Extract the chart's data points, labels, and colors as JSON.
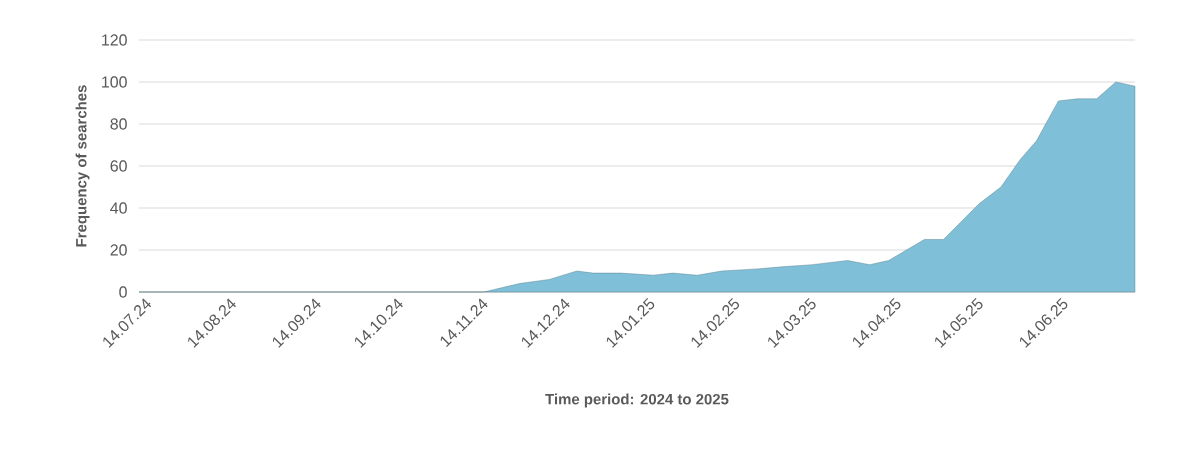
{
  "chart_data": {
    "type": "area",
    "xlabel": "Time period: 2024 to 2025",
    "ylabel": "Frequency of searches",
    "color": "#7fbfd8",
    "x": [
      "2024-07-14",
      "2024-11-17",
      "2024-11-30",
      "2024-12-11",
      "2024-12-21",
      "2024-12-27",
      "2025-01-06",
      "2025-01-18",
      "2025-01-25",
      "2025-02-03",
      "2025-02-12",
      "2025-02-25",
      "2025-03-06",
      "2025-03-17",
      "2025-03-30",
      "2025-04-07",
      "2025-04-14",
      "2025-04-27",
      "2025-05-04",
      "2025-05-17",
      "2025-05-25",
      "2025-06-01",
      "2025-06-07",
      "2025-06-15",
      "2025-06-22",
      "2025-06-29",
      "2025-07-06",
      "2025-07-13"
    ],
    "values": [
      0,
      0,
      4,
      6,
      10,
      9,
      9,
      8,
      9,
      8,
      10,
      11,
      12,
      13,
      15,
      13,
      15,
      25,
      25,
      42,
      50,
      63,
      72,
      91,
      92,
      92,
      100,
      98
    ],
    "xlim": [
      "2024-07-14",
      "2025-07-13"
    ],
    "xticks": [
      {
        "value": "2024-07-14",
        "label": "14.07.24"
      },
      {
        "value": "2024-08-14",
        "label": "14.08.24"
      },
      {
        "value": "2024-09-14",
        "label": "14.09.24"
      },
      {
        "value": "2024-10-14",
        "label": "14.10.24"
      },
      {
        "value": "2024-11-14",
        "label": "14.11.24"
      },
      {
        "value": "2024-12-14",
        "label": "14.12.24"
      },
      {
        "value": "2025-01-14",
        "label": "14.01.25"
      },
      {
        "value": "2025-02-14",
        "label": "14.02.25"
      },
      {
        "value": "2025-03-14",
        "label": "14.03.25"
      },
      {
        "value": "2025-04-14",
        "label": "14.04.25"
      },
      {
        "value": "2025-05-14",
        "label": "14.05.25"
      },
      {
        "value": "2025-06-14",
        "label": "14.06.25"
      }
    ],
    "ylim": [
      0,
      120
    ],
    "yticks": [
      0,
      20,
      40,
      60,
      80,
      100,
      120
    ],
    "grid": "y"
  }
}
